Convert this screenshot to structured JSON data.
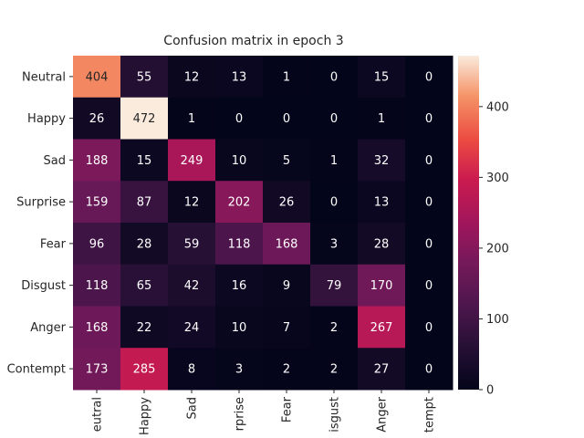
{
  "chart_data": {
    "type": "heatmap",
    "title": "Confusion matrix in epoch 3",
    "xlabel": "",
    "ylabel": "",
    "rows": [
      "Neutral",
      "Happy",
      "Sad",
      "Surprise",
      "Fear",
      "Disgust",
      "Anger",
      "Contempt"
    ],
    "x_tick_labels": [
      "eutral",
      "Happy",
      "Sad",
      "rprise",
      "Fear",
      "isgust",
      "Anger",
      "tempt"
    ],
    "values": [
      [
        404,
        55,
        12,
        13,
        1,
        0,
        15,
        0
      ],
      [
        26,
        472,
        1,
        0,
        0,
        0,
        1,
        0
      ],
      [
        188,
        15,
        249,
        10,
        5,
        1,
        32,
        0
      ],
      [
        159,
        87,
        12,
        202,
        26,
        0,
        13,
        0
      ],
      [
        96,
        28,
        59,
        118,
        168,
        3,
        28,
        0
      ],
      [
        118,
        65,
        42,
        16,
        9,
        79,
        170,
        0
      ],
      [
        168,
        22,
        24,
        10,
        7,
        2,
        267,
        0
      ],
      [
        173,
        285,
        8,
        3,
        2,
        2,
        27,
        0
      ]
    ],
    "vmin": 0,
    "vmax": 472,
    "colormap": "rocket",
    "colorbar_ticks": [
      0,
      100,
      200,
      300,
      400
    ],
    "annotation_colors": {
      "dark_cell": "#ffffff",
      "light_cell": "#262626"
    }
  }
}
